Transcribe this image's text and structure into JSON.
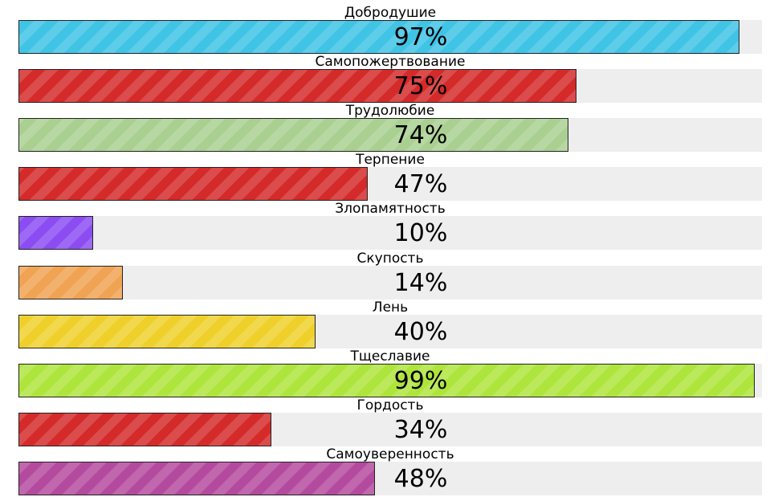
{
  "chart_data": {
    "type": "bar",
    "orientation": "horizontal",
    "ylim": [
      0,
      100
    ],
    "categories": [
      "Добродушие",
      "Самопожертвование",
      "Трудолюбие",
      "Терпение",
      "Злопамятность",
      "Скупость",
      "Лень",
      "Тщеславие",
      "Гордость",
      "Самоуверенность"
    ],
    "values": [
      97,
      75,
      74,
      47,
      10,
      14,
      40,
      99,
      34,
      48
    ],
    "value_labels": [
      "97%",
      "75%",
      "74%",
      "47%",
      "10%",
      "14%",
      "40%",
      "99%",
      "34%",
      "48%"
    ],
    "colors": [
      "#3fc4e6",
      "#d42a2a",
      "#a9cf91",
      "#d42a2a",
      "#8b4cf2",
      "#f0a352",
      "#efd02b",
      "#aee53c",
      "#d42a2a",
      "#b44a9e"
    ],
    "track_color": "#eeeeee"
  }
}
